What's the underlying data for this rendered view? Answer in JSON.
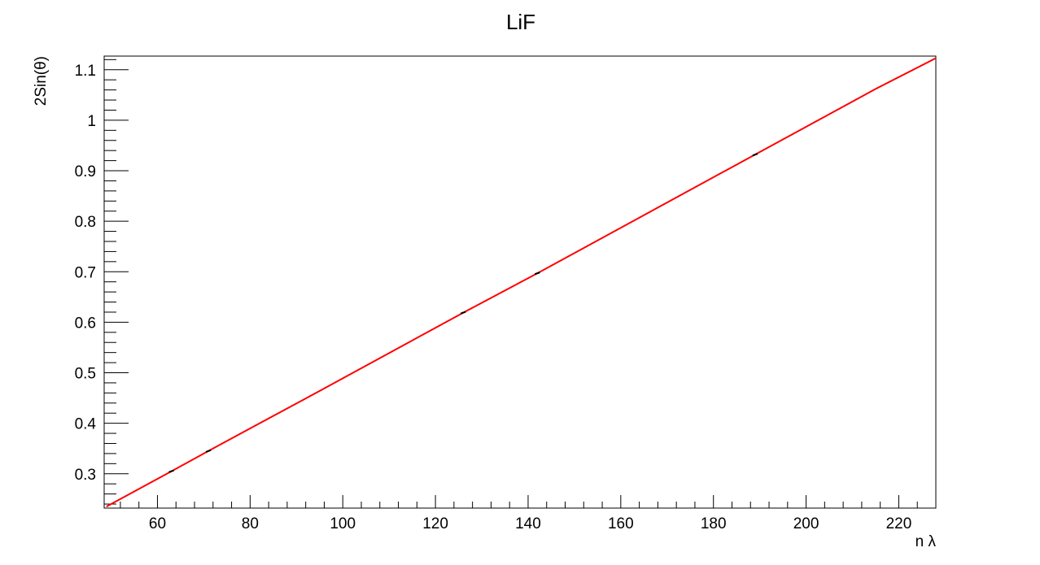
{
  "chart_data": {
    "type": "line",
    "title": "LiF",
    "xlabel": "n λ",
    "ylabel": "2Sin(θ)",
    "xlim": [
      48.5,
      228
    ],
    "ylim": [
      0.232,
      1.127
    ],
    "x_ticks": [
      60,
      80,
      100,
      120,
      140,
      160,
      180,
      200,
      220
    ],
    "y_ticks": [
      0.3,
      0.4,
      0.5,
      0.6,
      0.7,
      0.8,
      0.9,
      1.0,
      1.1
    ],
    "x_tick_labels": [
      "60",
      "80",
      "100",
      "120",
      "140",
      "160",
      "180",
      "200",
      "220"
    ],
    "y_tick_labels": [
      "0.3",
      "0.4",
      "0.5",
      "0.6",
      "0.7",
      "0.8",
      "0.9",
      "1",
      "1.1"
    ],
    "grid": false,
    "series": [
      {
        "color": "#ff0000",
        "x": [
          49,
          63,
          71,
          78,
          95,
          126,
          142,
          160,
          189,
          202,
          215,
          228
        ],
        "y": [
          0.235,
          0.305,
          0.345,
          0.38,
          0.464,
          0.619,
          0.697,
          0.787,
          0.932,
          0.997,
          1.062,
          1.123
        ]
      }
    ],
    "markers": [
      {
        "x": 63,
        "y": 0.305
      },
      {
        "x": 71,
        "y": 0.345
      },
      {
        "x": 126,
        "y": 0.619
      },
      {
        "x": 142,
        "y": 0.697
      },
      {
        "x": 189,
        "y": 0.932
      }
    ]
  }
}
